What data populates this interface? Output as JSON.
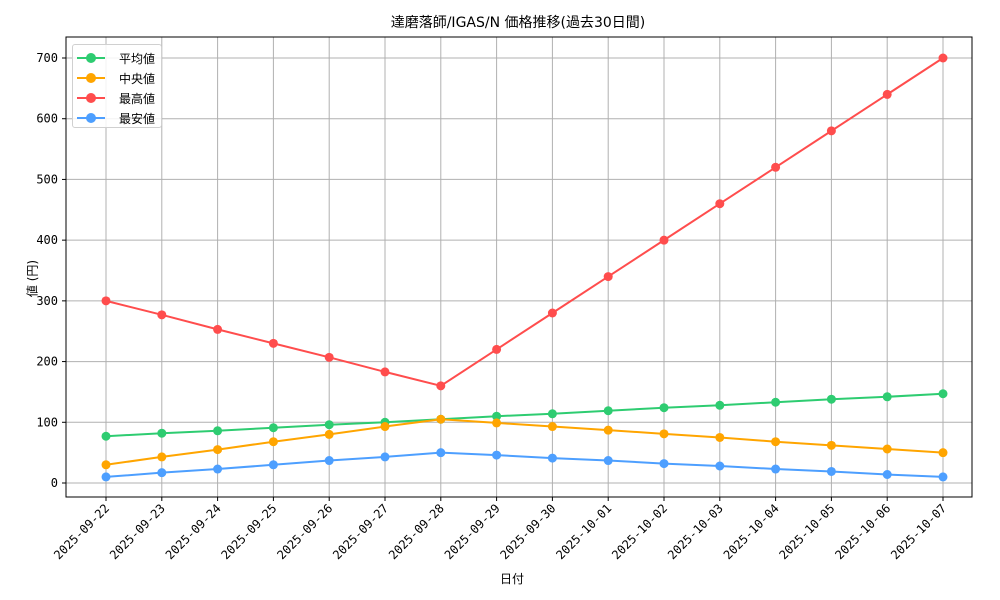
{
  "chart_data": {
    "type": "line",
    "title": "達磨落師/IGAS/N 価格推移(過去30日間)",
    "xlabel": "日付",
    "ylabel": "値 (円)",
    "ylim": [
      -20,
      735
    ],
    "yticks": [
      0,
      100,
      200,
      300,
      400,
      500,
      600,
      700
    ],
    "grid": true,
    "legend_position": "upper left",
    "x": [
      "2025-09-22",
      "2025-09-23",
      "2025-09-24",
      "2025-09-25",
      "2025-09-26",
      "2025-09-27",
      "2025-09-28",
      "2025-09-29",
      "2025-09-30",
      "2025-10-01",
      "2025-10-02",
      "2025-10-03",
      "2025-10-04",
      "2025-10-05",
      "2025-10-06",
      "2025-10-07"
    ],
    "series": [
      {
        "name": "平均値",
        "color": "#2ecc71",
        "values": [
          77,
          82,
          86,
          91,
          96,
          100,
          105,
          110,
          114,
          119,
          124,
          128,
          133,
          138,
          142,
          147
        ]
      },
      {
        "name": "中央値",
        "color": "#ffa500",
        "values": [
          30,
          43,
          55,
          68,
          80,
          93,
          105,
          99,
          93,
          87,
          81,
          75,
          68,
          62,
          56,
          50
        ]
      },
      {
        "name": "最高値",
        "color": "#ff4d4d",
        "values": [
          300,
          277,
          253,
          230,
          207,
          183,
          160,
          220,
          280,
          340,
          400,
          460,
          520,
          580,
          640,
          700
        ]
      },
      {
        "name": "最安値",
        "color": "#4d9fff",
        "values": [
          10,
          17,
          23,
          30,
          37,
          43,
          50,
          46,
          41,
          37,
          32,
          28,
          23,
          19,
          14,
          10
        ]
      }
    ]
  }
}
